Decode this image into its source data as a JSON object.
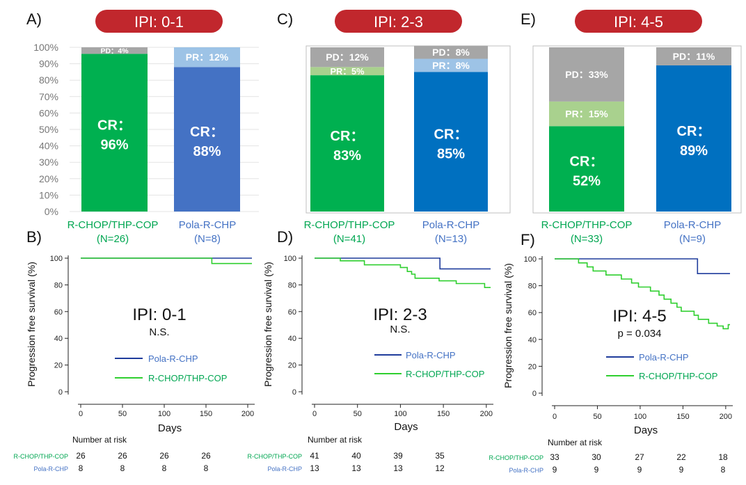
{
  "colors": {
    "banner": "#c1272d",
    "cr_green": "#00b050",
    "cr_blue_a": "#4472c4",
    "cr_blue_b": "#0070c0",
    "pr_green": "#a9d18e",
    "pr_blue": "#9dc3e6",
    "pd_gray": "#a6a6a6",
    "curve_blue": "#1f3c9c",
    "curve_green": "#2fcf2f",
    "label_green": "#00a651",
    "label_blue": "#4472c4"
  },
  "chart_data": [
    {
      "type": "bar",
      "panel": "A)",
      "title": "IPI: 0-1",
      "ylim": [
        0,
        100
      ],
      "yticks": [
        "0%",
        "10%",
        "20%",
        "30%",
        "40%",
        "50%",
        "60%",
        "70%",
        "80%",
        "90%",
        "100%"
      ],
      "bars": [
        {
          "label": "R-CHOP/THP-COP",
          "n": "(N=26)",
          "color_key": "label_green",
          "segments": [
            {
              "kind": "CR",
              "value": 96,
              "color_key": "cr_green",
              "text_line1": "CR：",
              "text_line2": "96%"
            },
            {
              "kind": "PD",
              "value": 4,
              "color_key": "pd_gray",
              "text_line1": "PD：4%"
            }
          ]
        },
        {
          "label": "Pola-R-CHP",
          "n": "(N=8)",
          "color_key": "label_blue",
          "segments": [
            {
              "kind": "CR",
              "value": 88,
              "color_key": "cr_blue_a",
              "text_line1": "CR：",
              "text_line2": "88%"
            },
            {
              "kind": "PR",
              "value": 12,
              "color_key": "pr_blue",
              "text_line1": "PR：12%"
            }
          ]
        }
      ]
    },
    {
      "type": "bar",
      "panel": "C)",
      "title": "IPI: 2-3",
      "ylim": [
        0,
        100
      ],
      "yticks": [],
      "bars": [
        {
          "label": "R-CHOP/THP-COP",
          "n": "(N=41)",
          "color_key": "label_green",
          "segments": [
            {
              "kind": "CR",
              "value": 83,
              "color_key": "cr_green",
              "text_line1": "CR：",
              "text_line2": "83%"
            },
            {
              "kind": "PR",
              "value": 5,
              "color_key": "pr_green",
              "text_line1": "PR：5%"
            },
            {
              "kind": "PD",
              "value": 12,
              "color_key": "pd_gray",
              "text_line1": "PD：12%"
            }
          ]
        },
        {
          "label": "Pola-R-CHP",
          "n": "(N=13)",
          "color_key": "label_blue",
          "segments": [
            {
              "kind": "CR",
              "value": 85,
              "color_key": "cr_blue_b",
              "text_line1": "CR：",
              "text_line2": "85%"
            },
            {
              "kind": "PR",
              "value": 8,
              "color_key": "pr_blue",
              "text_line1": "PR：8%"
            },
            {
              "kind": "PD",
              "value": 8,
              "color_key": "pd_gray",
              "text_line1": "PD：8%"
            }
          ]
        }
      ]
    },
    {
      "type": "bar",
      "panel": "E)",
      "title": "IPI: 4-5",
      "ylim": [
        0,
        100
      ],
      "yticks": [],
      "bars": [
        {
          "label": "R-CHOP/THP-COP",
          "n": "(N=33)",
          "color_key": "label_green",
          "segments": [
            {
              "kind": "CR",
              "value": 52,
              "color_key": "cr_green",
              "text_line1": "CR：",
              "text_line2": "52%"
            },
            {
              "kind": "PR",
              "value": 15,
              "color_key": "pr_green",
              "text_line1": "PR：15%"
            },
            {
              "kind": "PD",
              "value": 33,
              "color_key": "pd_gray",
              "text_line1": "PD：33%"
            }
          ]
        },
        {
          "label": "Pola-R-CHP",
          "n": "(N=9)",
          "color_key": "label_blue",
          "segments": [
            {
              "kind": "CR",
              "value": 89,
              "color_key": "cr_blue_b",
              "text_line1": "CR：",
              "text_line2": "89%"
            },
            {
              "kind": "PD",
              "value": 11,
              "color_key": "pd_gray",
              "text_line1": "PD：11%"
            }
          ]
        }
      ]
    },
    {
      "type": "line",
      "panel": "B)",
      "title": "IPI: 0-1",
      "subtitle": "N.S.",
      "xlabel": "Days",
      "ylabel": "Progression free survival (%)",
      "xlim": [
        0,
        205
      ],
      "ylim": [
        0,
        100
      ],
      "xticks": [
        0,
        50,
        100,
        150,
        200
      ],
      "yticks": [
        0,
        20,
        40,
        60,
        80,
        100
      ],
      "legend": [
        "Pola-R-CHP",
        "R-CHOP/THP-COP"
      ],
      "series": [
        {
          "name": "Pola-R-CHP",
          "color_key": "curve_blue",
          "x": [
            0,
            205
          ],
          "y": [
            100,
            100
          ]
        },
        {
          "name": "R-CHOP/THP-COP",
          "color_key": "curve_green",
          "x": [
            0,
            157,
            157,
            205
          ],
          "y": [
            100,
            100,
            96,
            96
          ]
        }
      ],
      "risk": {
        "header": "Number at risk",
        "rows": [
          {
            "name": "R-CHOP/THP-COP",
            "color_key": "label_green",
            "values": [
              "26",
              "26",
              "26",
              "26"
            ]
          },
          {
            "name": "Pola-R-CHP",
            "color_key": "label_blue",
            "values": [
              "8",
              "8",
              "8",
              "8"
            ]
          }
        ]
      }
    },
    {
      "type": "line",
      "panel": "D)",
      "title": "IPI: 2-3",
      "subtitle": "N.S.",
      "xlabel": "Days",
      "ylabel": "Progression free survival (%)",
      "xlim": [
        0,
        205
      ],
      "ylim": [
        0,
        100
      ],
      "xticks": [
        0,
        50,
        100,
        150,
        200
      ],
      "yticks": [
        0,
        20,
        40,
        60,
        80,
        100
      ],
      "legend": [
        "Pola-R-CHP",
        "R-CHOP/THP-COP"
      ],
      "series": [
        {
          "name": "Pola-R-CHP",
          "color_key": "curve_blue",
          "x": [
            0,
            146,
            146,
            205
          ],
          "y": [
            100,
            100,
            92,
            92
          ]
        },
        {
          "name": "R-CHOP/THP-COP",
          "color_key": "curve_green",
          "x": [
            0,
            30,
            30,
            58,
            58,
            100,
            100,
            108,
            108,
            113,
            113,
            117,
            117,
            145,
            145,
            165,
            165,
            198,
            198,
            205
          ],
          "y": [
            100,
            100,
            98,
            98,
            95,
            95,
            93,
            93,
            90,
            90,
            88,
            88,
            85,
            85,
            83,
            83,
            81,
            81,
            78,
            78
          ]
        }
      ],
      "risk": {
        "header": "Number at risk",
        "rows": [
          {
            "name": "R-CHOP/THP-COP",
            "color_key": "label_green",
            "values": [
              "41",
              "40",
              "39",
              "35"
            ]
          },
          {
            "name": "Pola-R-CHP",
            "color_key": "label_blue",
            "values": [
              "13",
              "13",
              "13",
              "12"
            ]
          }
        ]
      }
    },
    {
      "type": "line",
      "panel": "F)",
      "title": "IPI: 4-5",
      "subtitle": "p = 0.034",
      "xlabel": "Days",
      "ylabel": "Progression free survival (%)",
      "xlim": [
        0,
        205
      ],
      "ylim": [
        0,
        100
      ],
      "xticks": [
        0,
        50,
        100,
        150,
        200
      ],
      "yticks": [
        0,
        20,
        40,
        60,
        80,
        100
      ],
      "legend": [
        "Pola-R-CHP",
        "R-CHOP/THP-COP"
      ],
      "series": [
        {
          "name": "Pola-R-CHP",
          "color_key": "curve_blue",
          "x": [
            0,
            167,
            167,
            205
          ],
          "y": [
            100,
            100,
            89,
            89
          ]
        },
        {
          "name": "R-CHOP/THP-COP",
          "color_key": "curve_green",
          "x": [
            0,
            28,
            28,
            38,
            38,
            45,
            45,
            60,
            60,
            78,
            78,
            90,
            90,
            98,
            98,
            112,
            112,
            122,
            122,
            128,
            128,
            136,
            136,
            143,
            143,
            148,
            148,
            163,
            163,
            168,
            168,
            180,
            180,
            190,
            190,
            197,
            197,
            203,
            203,
            205
          ],
          "y": [
            100,
            100,
            97,
            97,
            94,
            94,
            91,
            91,
            88,
            88,
            85,
            85,
            82,
            82,
            79,
            79,
            76,
            76,
            73,
            73,
            70,
            70,
            67,
            67,
            64,
            64,
            61,
            61,
            58,
            58,
            55,
            55,
            52,
            52,
            50,
            50,
            48,
            48,
            51,
            51
          ]
        }
      ],
      "risk": {
        "header": "Number at risk",
        "rows": [
          {
            "name": "R-CHOP/THP-COP",
            "color_key": "label_green",
            "values": [
              "33",
              "30",
              "27",
              "22",
              "18"
            ]
          },
          {
            "name": "Pola-R-CHP",
            "color_key": "label_blue",
            "values": [
              "9",
              "9",
              "9",
              "9",
              "8"
            ]
          }
        ]
      }
    }
  ]
}
